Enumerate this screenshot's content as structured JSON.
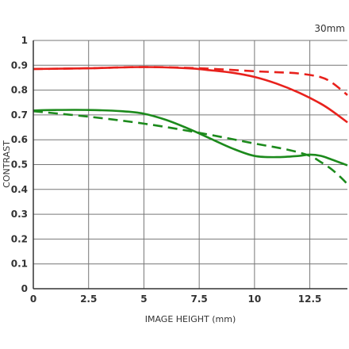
{
  "chart_data": {
    "type": "line",
    "annotation": "30mm",
    "xlabel": "IMAGE HEIGHT (mm)",
    "ylabel": "CONTRAST",
    "xlim": [
      0,
      14.2
    ],
    "ylim": [
      0,
      1
    ],
    "x_ticks": [
      "0",
      "2.5",
      "5",
      "7.5",
      "10",
      "12.5"
    ],
    "y_ticks": [
      "0",
      "0.1",
      "0.2",
      "0.3",
      "0.4",
      "0.5",
      "0.6",
      "0.7",
      "0.8",
      "0.9",
      "1"
    ],
    "grid": true,
    "colors": {
      "red": "#e8211c",
      "green": "#1c8a1c",
      "grid": "#777777",
      "axis": "#333333"
    },
    "series": [
      {
        "color": "#e8211c",
        "dash": "solid",
        "x": [
          0,
          2.5,
          5,
          7,
          8,
          9,
          10,
          11,
          12,
          13,
          13.6,
          14.2
        ],
        "y": [
          0.885,
          0.888,
          0.893,
          0.888,
          0.88,
          0.87,
          0.853,
          0.826,
          0.79,
          0.745,
          0.71,
          0.67
        ]
      },
      {
        "color": "#e8211c",
        "dash": "dashed",
        "x": [
          0,
          2.5,
          5,
          7.5,
          10,
          11,
          12,
          13,
          13.5,
          14,
          14.2
        ],
        "y": [
          0.885,
          0.888,
          0.893,
          0.888,
          0.876,
          0.872,
          0.867,
          0.852,
          0.83,
          0.795,
          0.78
        ]
      },
      {
        "color": "#1c8a1c",
        "dash": "solid",
        "x": [
          0,
          1,
          2.5,
          4,
          5,
          6,
          7,
          8,
          9,
          10,
          11,
          12,
          12.5,
          13,
          13.5,
          14.2
        ],
        "y": [
          0.718,
          0.72,
          0.72,
          0.715,
          0.705,
          0.68,
          0.645,
          0.605,
          0.565,
          0.535,
          0.53,
          0.535,
          0.54,
          0.535,
          0.52,
          0.497
        ]
      },
      {
        "color": "#1c8a1c",
        "dash": "dashed",
        "x": [
          0,
          2.5,
          5,
          7.5,
          10,
          11.5,
          12.5,
          13,
          13.5,
          14,
          14.2
        ],
        "y": [
          0.715,
          0.693,
          0.665,
          0.628,
          0.585,
          0.56,
          0.535,
          0.51,
          0.48,
          0.44,
          0.42
        ]
      }
    ]
  }
}
